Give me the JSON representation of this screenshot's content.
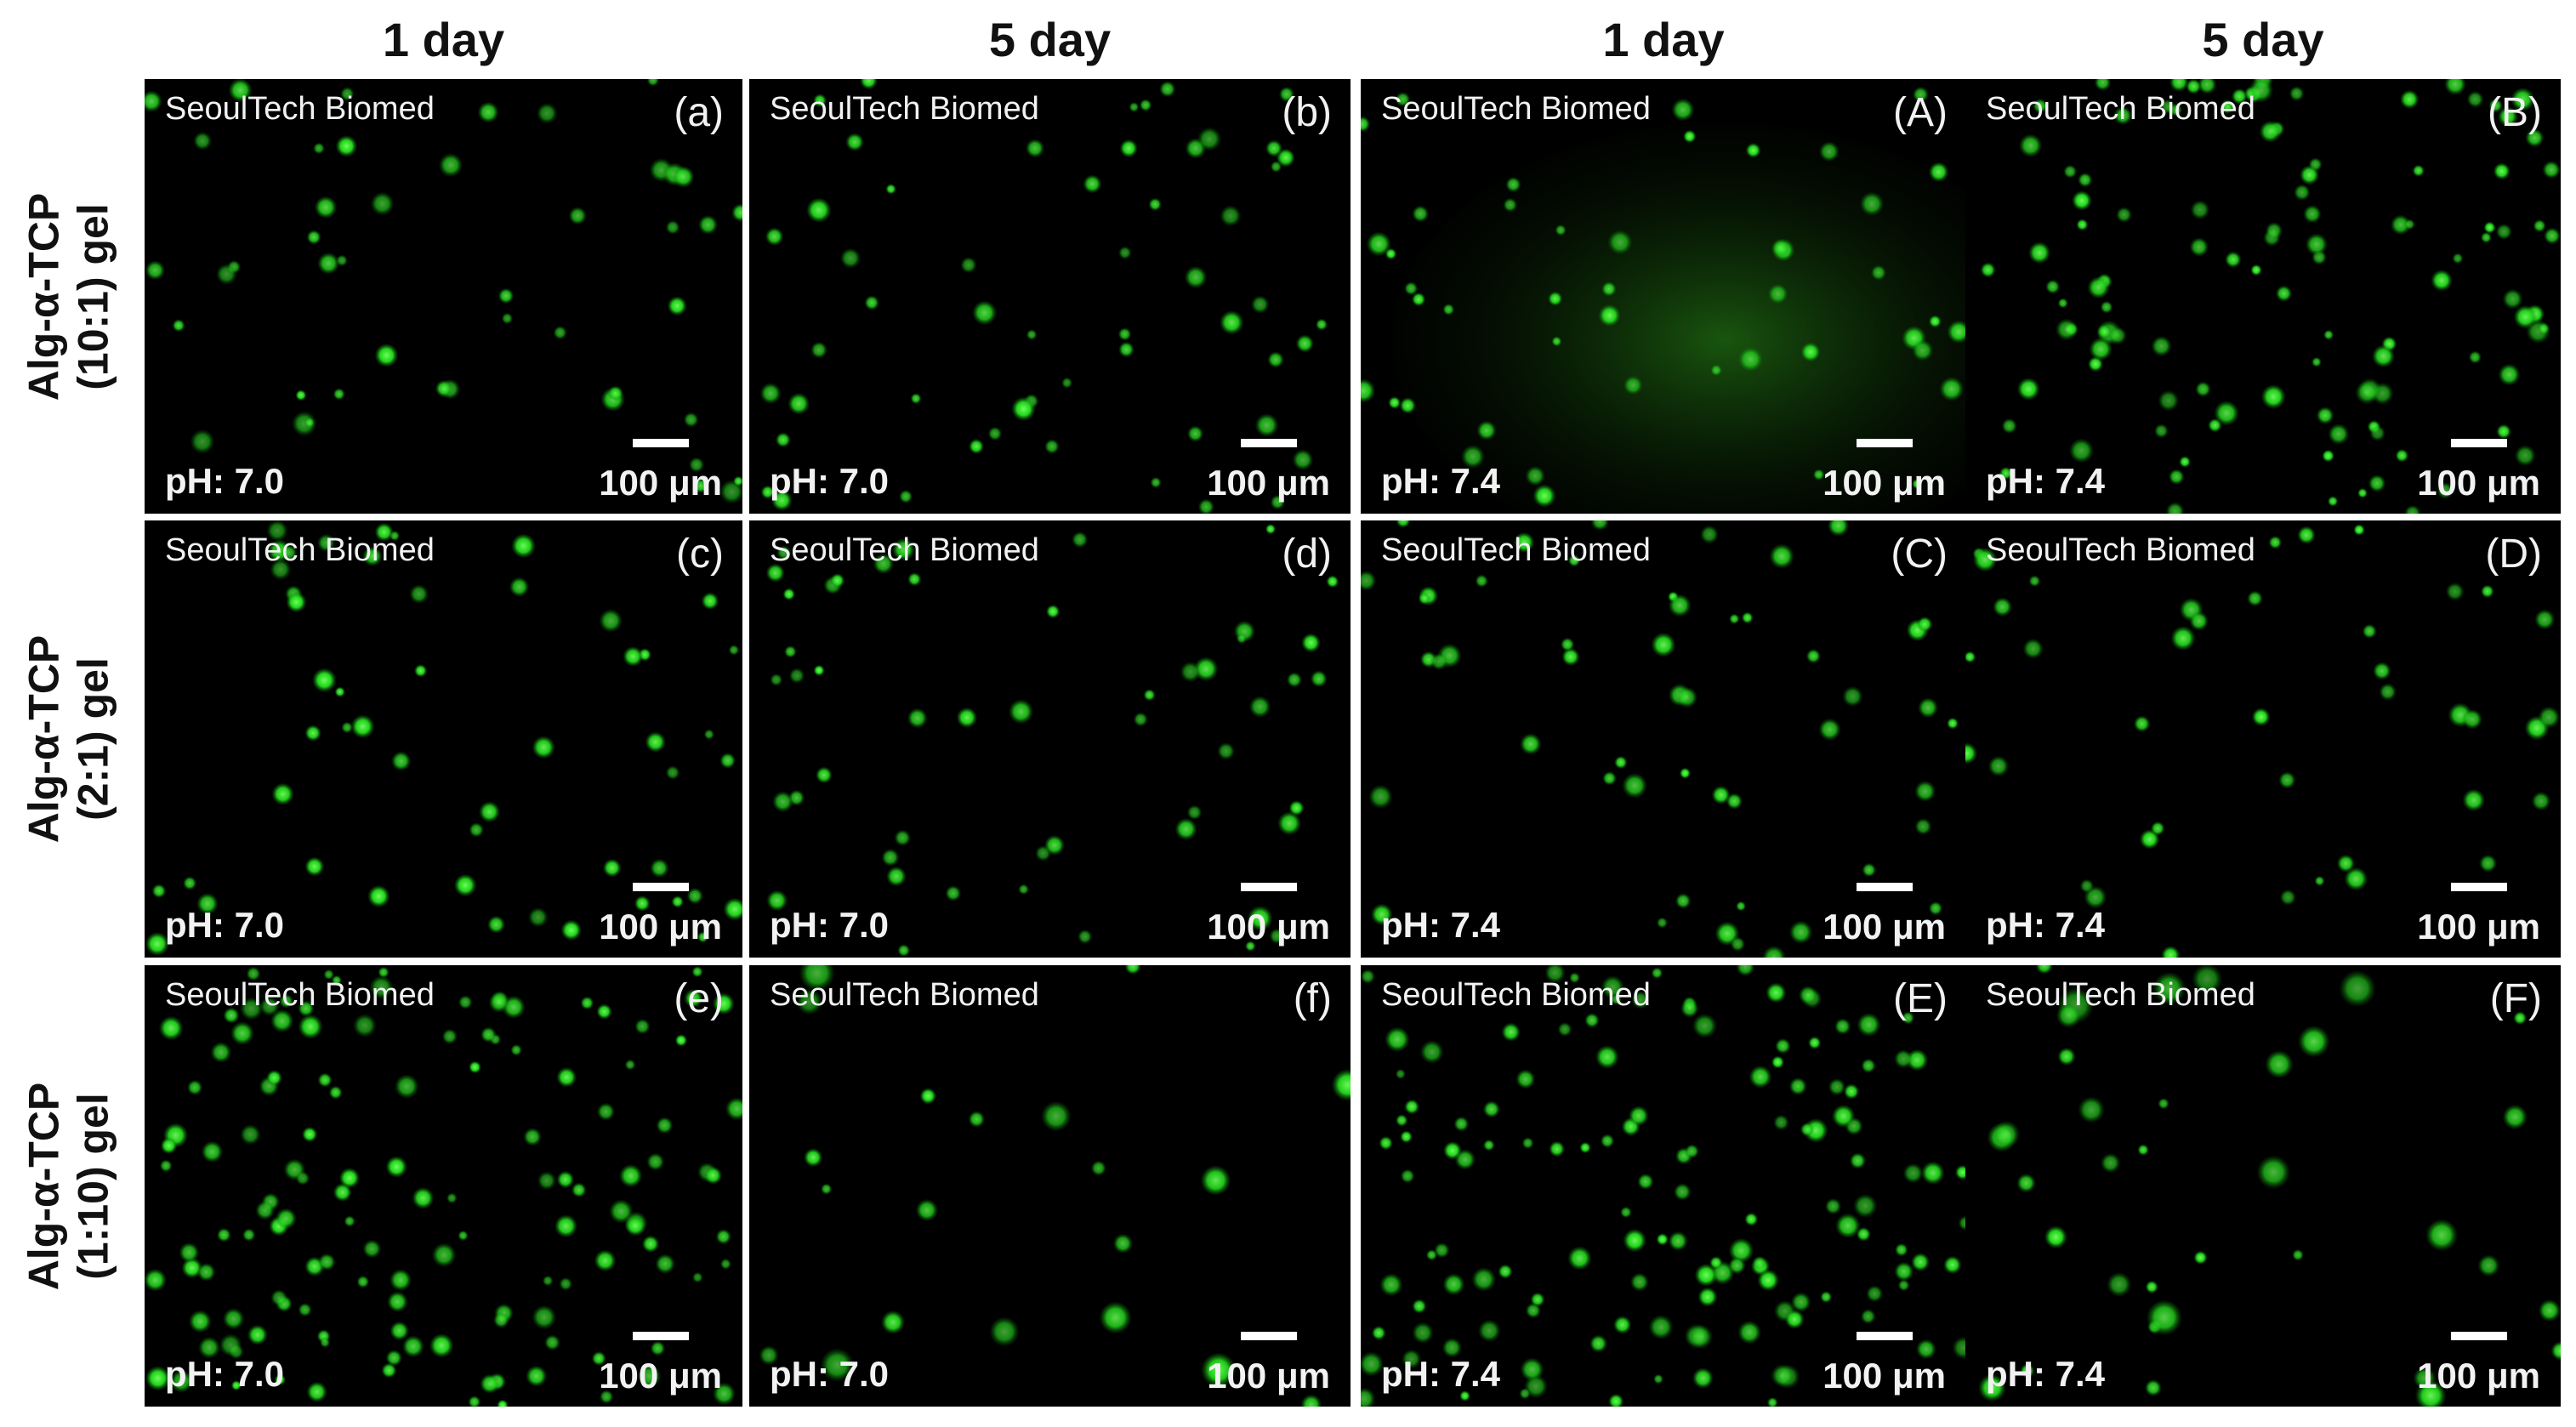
{
  "columns": [
    "1 day",
    "5 day",
    "1 day",
    "5 day"
  ],
  "rows": [
    {
      "name": "Alg-α-TCP",
      "ratio": "(10:1) gel"
    },
    {
      "name": "Alg-α-TCP",
      "ratio": "(2:1) gel"
    },
    {
      "name": "Alg-α-TCP",
      "ratio": "(1:10) gel"
    }
  ],
  "panels": [
    {
      "label": "(a)",
      "watermark": "SeoulTech Biomed",
      "ph": "pH: 7.0",
      "scale": "100 μm"
    },
    {
      "label": "(b)",
      "watermark": "SeoulTech Biomed",
      "ph": "pH: 7.0",
      "scale": "100 μm"
    },
    {
      "label": "(A)",
      "watermark": "SeoulTech Biomed",
      "ph": "pH: 7.4",
      "scale": "100 μm"
    },
    {
      "label": "(B)",
      "watermark": "SeoulTech Biomed",
      "ph": "pH: 7.4",
      "scale": "100 μm"
    },
    {
      "label": "(c)",
      "watermark": "SeoulTech Biomed",
      "ph": "pH: 7.0",
      "scale": "100 μm"
    },
    {
      "label": "(d)",
      "watermark": "SeoulTech Biomed",
      "ph": "pH: 7.0",
      "scale": "100 μm"
    },
    {
      "label": "(C)",
      "watermark": "SeoulTech Biomed",
      "ph": "pH: 7.4",
      "scale": "100 μm"
    },
    {
      "label": "(D)",
      "watermark": "SeoulTech Biomed",
      "ph": "pH: 7.4",
      "scale": "100 μm"
    },
    {
      "label": "(e)",
      "watermark": "SeoulTech Biomed",
      "ph": "pH: 7.0",
      "scale": "100 μm"
    },
    {
      "label": "(f)",
      "watermark": "SeoulTech Biomed",
      "ph": "pH: 7.0",
      "scale": "100 μm"
    },
    {
      "label": "(E)",
      "watermark": "SeoulTech Biomed",
      "ph": "pH: 7.4",
      "scale": "100 μm"
    },
    {
      "label": "(F)",
      "watermark": "SeoulTech Biomed",
      "ph": "pH: 7.4",
      "scale": "100 μm"
    }
  ]
}
